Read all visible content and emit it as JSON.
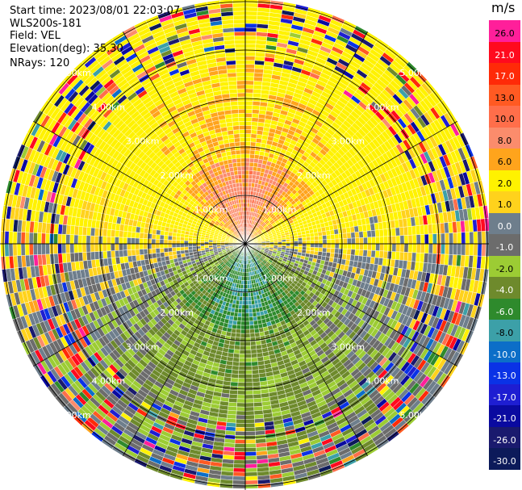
{
  "info": {
    "start_time": "Start time: 2023/08/01 22:03:07",
    "instrument": "WLS200s-181",
    "field": "Field: VEL",
    "elevation": "Elevation(deg): 35.30",
    "nrays": "NRays: 120"
  },
  "colorbar": {
    "unit": "m/s",
    "levels": [
      {
        "label": "26.0",
        "color": "#ff1f9a"
      },
      {
        "label": "21.0",
        "color": "#ff0a1e"
      },
      {
        "label": "17.0",
        "color": "#ff2a08"
      },
      {
        "label": "13.0",
        "color": "#ff5a22"
      },
      {
        "label": "10.0",
        "color": "#ff6e4a"
      },
      {
        "label": "8.0",
        "color": "#fb8c6c"
      },
      {
        "label": "6.0",
        "color": "#ffa41c"
      },
      {
        "label": "2.0",
        "color": "#fff200"
      },
      {
        "label": "1.0",
        "color": "#ffd21c"
      },
      {
        "label": "0.0",
        "color": "#6e7e8c"
      },
      {
        "label": "-1.0",
        "color": "#6c6c6c"
      },
      {
        "label": "-2.0",
        "color": "#9ccc34"
      },
      {
        "label": "-4.0",
        "color": "#6e8a2c"
      },
      {
        "label": "-6.0",
        "color": "#2e8a2c"
      },
      {
        "label": "-8.0",
        "color": "#3ca0a8"
      },
      {
        "label": "-10.0",
        "color": "#0c6ec8"
      },
      {
        "label": "-13.0",
        "color": "#0a32e6"
      },
      {
        "label": "-17.0",
        "color": "#1e1ed2"
      },
      {
        "label": "-21.0",
        "color": "#0a0aa0"
      },
      {
        "label": "-26.0",
        "color": "#1a1a6e"
      },
      {
        "label": "-30.0",
        "color": "#0c1a5a"
      }
    ]
  },
  "chart_data": {
    "type": "heatmap",
    "projection": "polar PPI",
    "field": "VEL",
    "units": "m/s",
    "nrays": 120,
    "elevation_deg": 35.3,
    "range_ring_labels": [
      "1.00km",
      "2.00km",
      "3.00km",
      "4.00km",
      "5.00km"
    ],
    "range_rings_km": [
      1,
      2,
      3,
      4,
      5
    ],
    "max_range_km": 6.4,
    "velocity_pattern": "positive (yellow/orange, toward north) in northern half, negative (green) in southern half",
    "center_speed_ms": 6,
    "outer_clutter": true
  }
}
